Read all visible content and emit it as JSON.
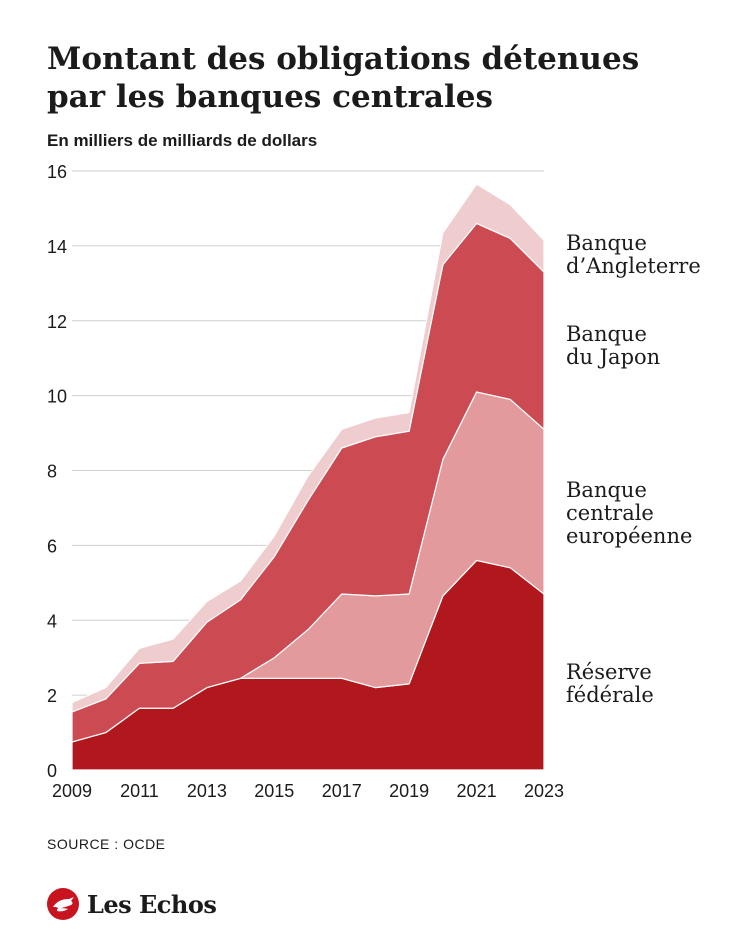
{
  "title": "Montant des obligations détenues par les banques centrales",
  "subtitle": "En milliers de milliards de dollars",
  "source": "SOURCE : OCDE",
  "brand": {
    "name": "Les Echos",
    "icon": "les-echos-bird-icon",
    "color": "#c8141e"
  },
  "chart_data": {
    "type": "area",
    "stacked": true,
    "x": [
      2009,
      2010,
      2011,
      2012,
      2013,
      2014,
      2015,
      2016,
      2017,
      2018,
      2019,
      2020,
      2021,
      2022,
      2023
    ],
    "x_ticks": [
      "2009",
      "2011",
      "2013",
      "2015",
      "2017",
      "2019",
      "2021",
      "2023"
    ],
    "ylim": [
      0,
      16
    ],
    "y_ticks": [
      "0",
      "2",
      "4",
      "6",
      "8",
      "10",
      "12",
      "14",
      "16"
    ],
    "grid": true,
    "series": [
      {
        "name": "Réserve fédérale",
        "color": "#b1181d",
        "values": [
          0.75,
          1.0,
          1.65,
          1.65,
          2.2,
          2.45,
          2.45,
          2.45,
          2.45,
          2.2,
          2.3,
          4.65,
          5.6,
          5.4,
          4.7
        ]
      },
      {
        "name": "Banque centrale européenne",
        "color": "#e39a9d",
        "values": [
          0,
          0,
          0,
          0,
          0,
          0,
          0.55,
          1.3,
          2.25,
          2.45,
          2.4,
          3.65,
          4.5,
          4.5,
          4.4
        ]
      },
      {
        "name": "Banque du Japon",
        "color": "#cc4b53",
        "values": [
          0.8,
          0.9,
          1.2,
          1.25,
          1.75,
          2.1,
          2.7,
          3.45,
          3.9,
          4.25,
          4.35,
          5.2,
          4.5,
          4.3,
          4.2
        ]
      },
      {
        "name": "Banque d'Angleterre",
        "color": "#efcdce",
        "values": [
          0.25,
          0.3,
          0.4,
          0.6,
          0.55,
          0.5,
          0.55,
          0.65,
          0.5,
          0.5,
          0.5,
          0.85,
          1.05,
          0.9,
          0.85
        ]
      }
    ],
    "legend_labels": [
      {
        "series": "Banque d'Angleterre",
        "lines": [
          "Banque",
          "d’Angleterre"
        ]
      },
      {
        "series": "Banque du Japon",
        "lines": [
          "Banque",
          "du Japon"
        ]
      },
      {
        "series": "Banque centrale européenne",
        "lines": [
          "Banque",
          "centrale",
          "européenne"
        ]
      },
      {
        "series": "Réserve fédérale",
        "lines": [
          "Réserve",
          "fédérale"
        ]
      }
    ],
    "legend_placement": "right"
  }
}
